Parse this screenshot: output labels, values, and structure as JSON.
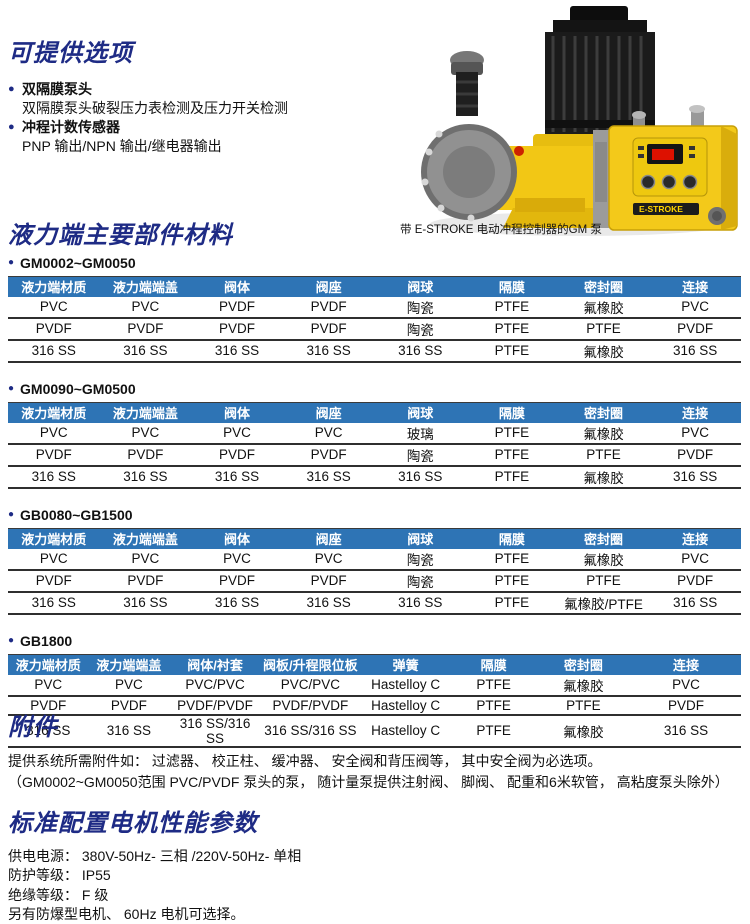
{
  "options": {
    "title": "可提供选项",
    "items": [
      {
        "label": "双隔膜泵头",
        "desc": "双隔膜泵头破裂压力表检测及压力开关检测"
      },
      {
        "label": "冲程计数传感器",
        "desc": "PNP 输出/NPN 输出/继电器输出"
      }
    ]
  },
  "pump": {
    "caption": "带 E-STROKE 电动冲程控制器的GM 泵",
    "box_label": "E-STROKE"
  },
  "materials": {
    "title": "液力端主要部件材料",
    "tables": [
      {
        "label": "GM0002~GM0050",
        "headers": [
          "液力端材质",
          "液力端端盖",
          "阀体",
          "阀座",
          "阀球",
          "隔膜",
          "密封圈",
          "连接"
        ],
        "rows": [
          [
            "PVC",
            "PVC",
            "PVDF",
            "PVDF",
            "陶瓷",
            "PTFE",
            "氟橡胶",
            "PVC"
          ],
          [
            "PVDF",
            "PVDF",
            "PVDF",
            "PVDF",
            "陶瓷",
            "PTFE",
            "PTFE",
            "PVDF"
          ],
          [
            "316 SS",
            "316 SS",
            "316 SS",
            "316 SS",
            "316 SS",
            "PTFE",
            "氟橡胶",
            "316 SS"
          ]
        ]
      },
      {
        "label": "GM0090~GM0500",
        "headers": [
          "液力端材质",
          "液力端端盖",
          "阀体",
          "阀座",
          "阀球",
          "隔膜",
          "密封圈",
          "连接"
        ],
        "rows": [
          [
            "PVC",
            "PVC",
            "PVC",
            "PVC",
            "玻璃",
            "PTFE",
            "氟橡胶",
            "PVC"
          ],
          [
            "PVDF",
            "PVDF",
            "PVDF",
            "PVDF",
            "陶瓷",
            "PTFE",
            "PTFE",
            "PVDF"
          ],
          [
            "316 SS",
            "316 SS",
            "316 SS",
            "316 SS",
            "316 SS",
            "PTFE",
            "氟橡胶",
            "316 SS"
          ]
        ]
      },
      {
        "label": "GB0080~GB1500",
        "headers": [
          "液力端材质",
          "液力端端盖",
          "阀体",
          "阀座",
          "阀球",
          "隔膜",
          "密封圈",
          "连接"
        ],
        "rows": [
          [
            "PVC",
            "PVC",
            "PVC",
            "PVC",
            "陶瓷",
            "PTFE",
            "氟橡胶",
            "PVC"
          ],
          [
            "PVDF",
            "PVDF",
            "PVDF",
            "PVDF",
            "陶瓷",
            "PTFE",
            "PTFE",
            "PVDF"
          ],
          [
            "316 SS",
            "316 SS",
            "316 SS",
            "316 SS",
            "316 SS",
            "PTFE",
            "氟橡胶/PTFE",
            "316 SS"
          ]
        ]
      },
      {
        "label": "GB1800",
        "headers": [
          "液力端材质",
          "液力端端盖",
          "阀体/衬套",
          "阀板/升程限位板",
          "弹簧",
          "隔膜",
          "密封圈",
          "连接"
        ],
        "rows": [
          [
            "PVC",
            "PVC",
            "PVC/PVC",
            "PVC/PVC",
            "Hastelloy C",
            "PTFE",
            "氟橡胶",
            "PVC"
          ],
          [
            "PVDF",
            "PVDF",
            "PVDF/PVDF",
            "PVDF/PVDF",
            "Hastelloy C",
            "PTFE",
            "PTFE",
            "PVDF"
          ],
          [
            "316 SS",
            "316 SS",
            "316 SS/316 SS",
            "316 SS/316 SS",
            "Hastelloy C",
            "PTFE",
            "氟橡胶",
            "316 SS"
          ]
        ]
      }
    ]
  },
  "accessories": {
    "title": "附件",
    "lines": [
      "提供系统所需附件如：  过滤器、 校正柱、 缓冲器、 安全阀和背压阀等， 其中安全阀为必选项。",
      "（GM0002~GM0050范围 PVC/PVDF 泵头的泵， 随计量泵提供注射阀、 脚阀、 配重和6米软管， 高粘度泵头除外）"
    ]
  },
  "motor": {
    "title": "标准配置电机性能参数",
    "lines": [
      "供电电源：  380V-50Hz- 三相 /220V-50Hz- 单相",
      "防护等级：  IP55",
      "绝缘等级：  F 级",
      "另有防爆型电机、 60Hz 电机可选择。"
    ]
  },
  "colors": {
    "heading_navy": "#1e2b85",
    "table_header_blue": "#2e74b5",
    "pump_yellow": "#f2c715",
    "display_red": "#dd1100"
  }
}
